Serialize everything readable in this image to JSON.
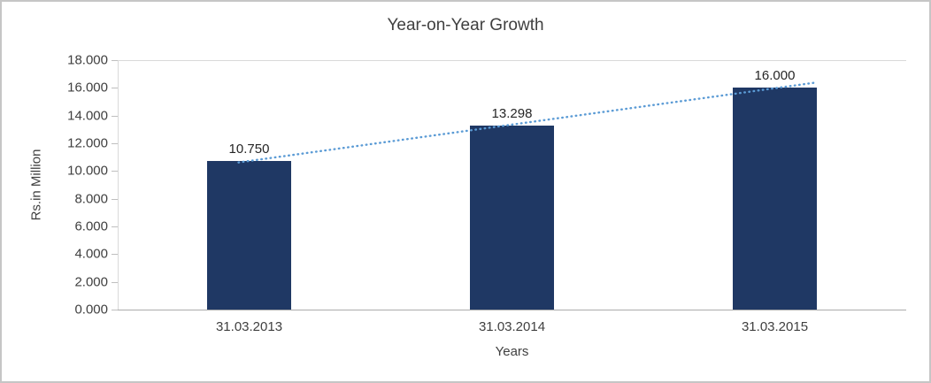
{
  "chart_data": {
    "type": "bar",
    "title": "Year-on-Year Growth",
    "categories": [
      "31.03.2013",
      "31.03.2014",
      "31.03.2015"
    ],
    "values": [
      10.75,
      13.298,
      16.0
    ],
    "value_labels": [
      "10.750",
      "13.298",
      "16.000"
    ],
    "xlabel": "Years",
    "ylabel": "Rs.in Million",
    "ylim": [
      0,
      18
    ],
    "ytick_step": 2,
    "ytick_labels": [
      "0.000",
      "2.000",
      "4.000",
      "6.000",
      "8.000",
      "10.000",
      "12.000",
      "14.000",
      "16.000",
      "18.000"
    ],
    "grid": "top-border-line-only",
    "legend": "none",
    "trendline": {
      "type": "linear",
      "style": "dotted"
    },
    "colors": {
      "bar": "#1F3864",
      "trendline": "#5B9BD5",
      "axis": "#ABABAB",
      "tick": "#BFBFBF",
      "gridline": "#D9D9D9",
      "text": "#404040",
      "frame_border": "#C6C6C6"
    }
  }
}
